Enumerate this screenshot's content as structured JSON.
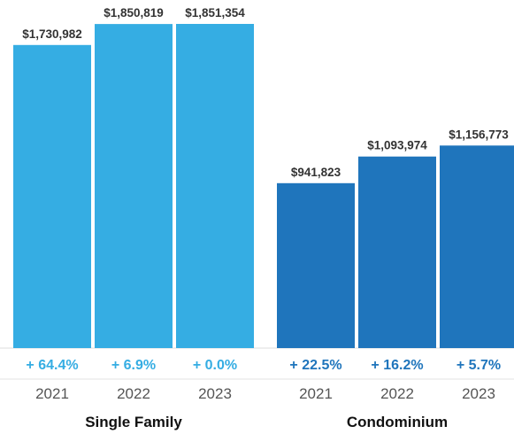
{
  "chart_data": {
    "type": "bar",
    "groups": [
      {
        "name": "Single Family",
        "color": "#35ade3",
        "categories": [
          "2021",
          "2022",
          "2023"
        ],
        "values": [
          1730982,
          1850819,
          1851354
        ],
        "value_labels": [
          "$1,730,982",
          "$1,850,819",
          "$1,851,354"
        ],
        "change_labels": [
          "+ 64.4%",
          "+ 6.9%",
          "+ 0.0%"
        ]
      },
      {
        "name": "Condominium",
        "color": "#1f75bc",
        "categories": [
          "2021",
          "2022",
          "2023"
        ],
        "values": [
          941823,
          1093974,
          1156773
        ],
        "value_labels": [
          "$941,823",
          "$1,093,974",
          "$1,156,773"
        ],
        "change_labels": [
          "+ 22.5%",
          "+ 16.2%",
          "+ 5.7%"
        ]
      }
    ],
    "ylim": [
      0,
      1851354
    ],
    "grid": false,
    "legend": "none"
  }
}
